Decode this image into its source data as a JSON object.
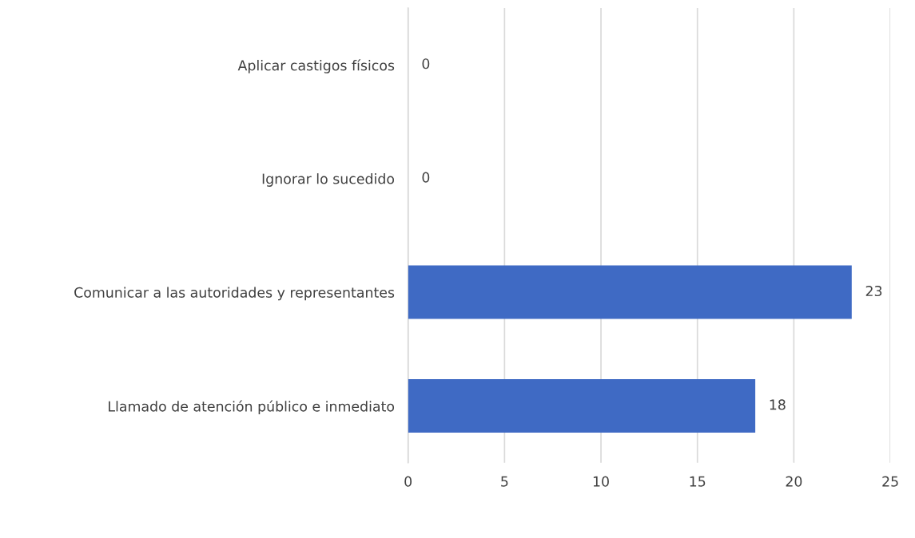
{
  "chart_data": {
    "type": "bar",
    "orientation": "horizontal",
    "categories": [
      "Aplicar castigos físicos",
      "Ignorar lo sucedido",
      "Comunicar a las autoridades y representantes",
      "Llamado de atención público e inmediato"
    ],
    "values": [
      0,
      0,
      23,
      18
    ],
    "color": "#3f6ac4",
    "xlim": [
      0,
      25
    ],
    "xticks": [
      0,
      5,
      10,
      15,
      20,
      25
    ],
    "grid": "x",
    "data_labels": true
  }
}
